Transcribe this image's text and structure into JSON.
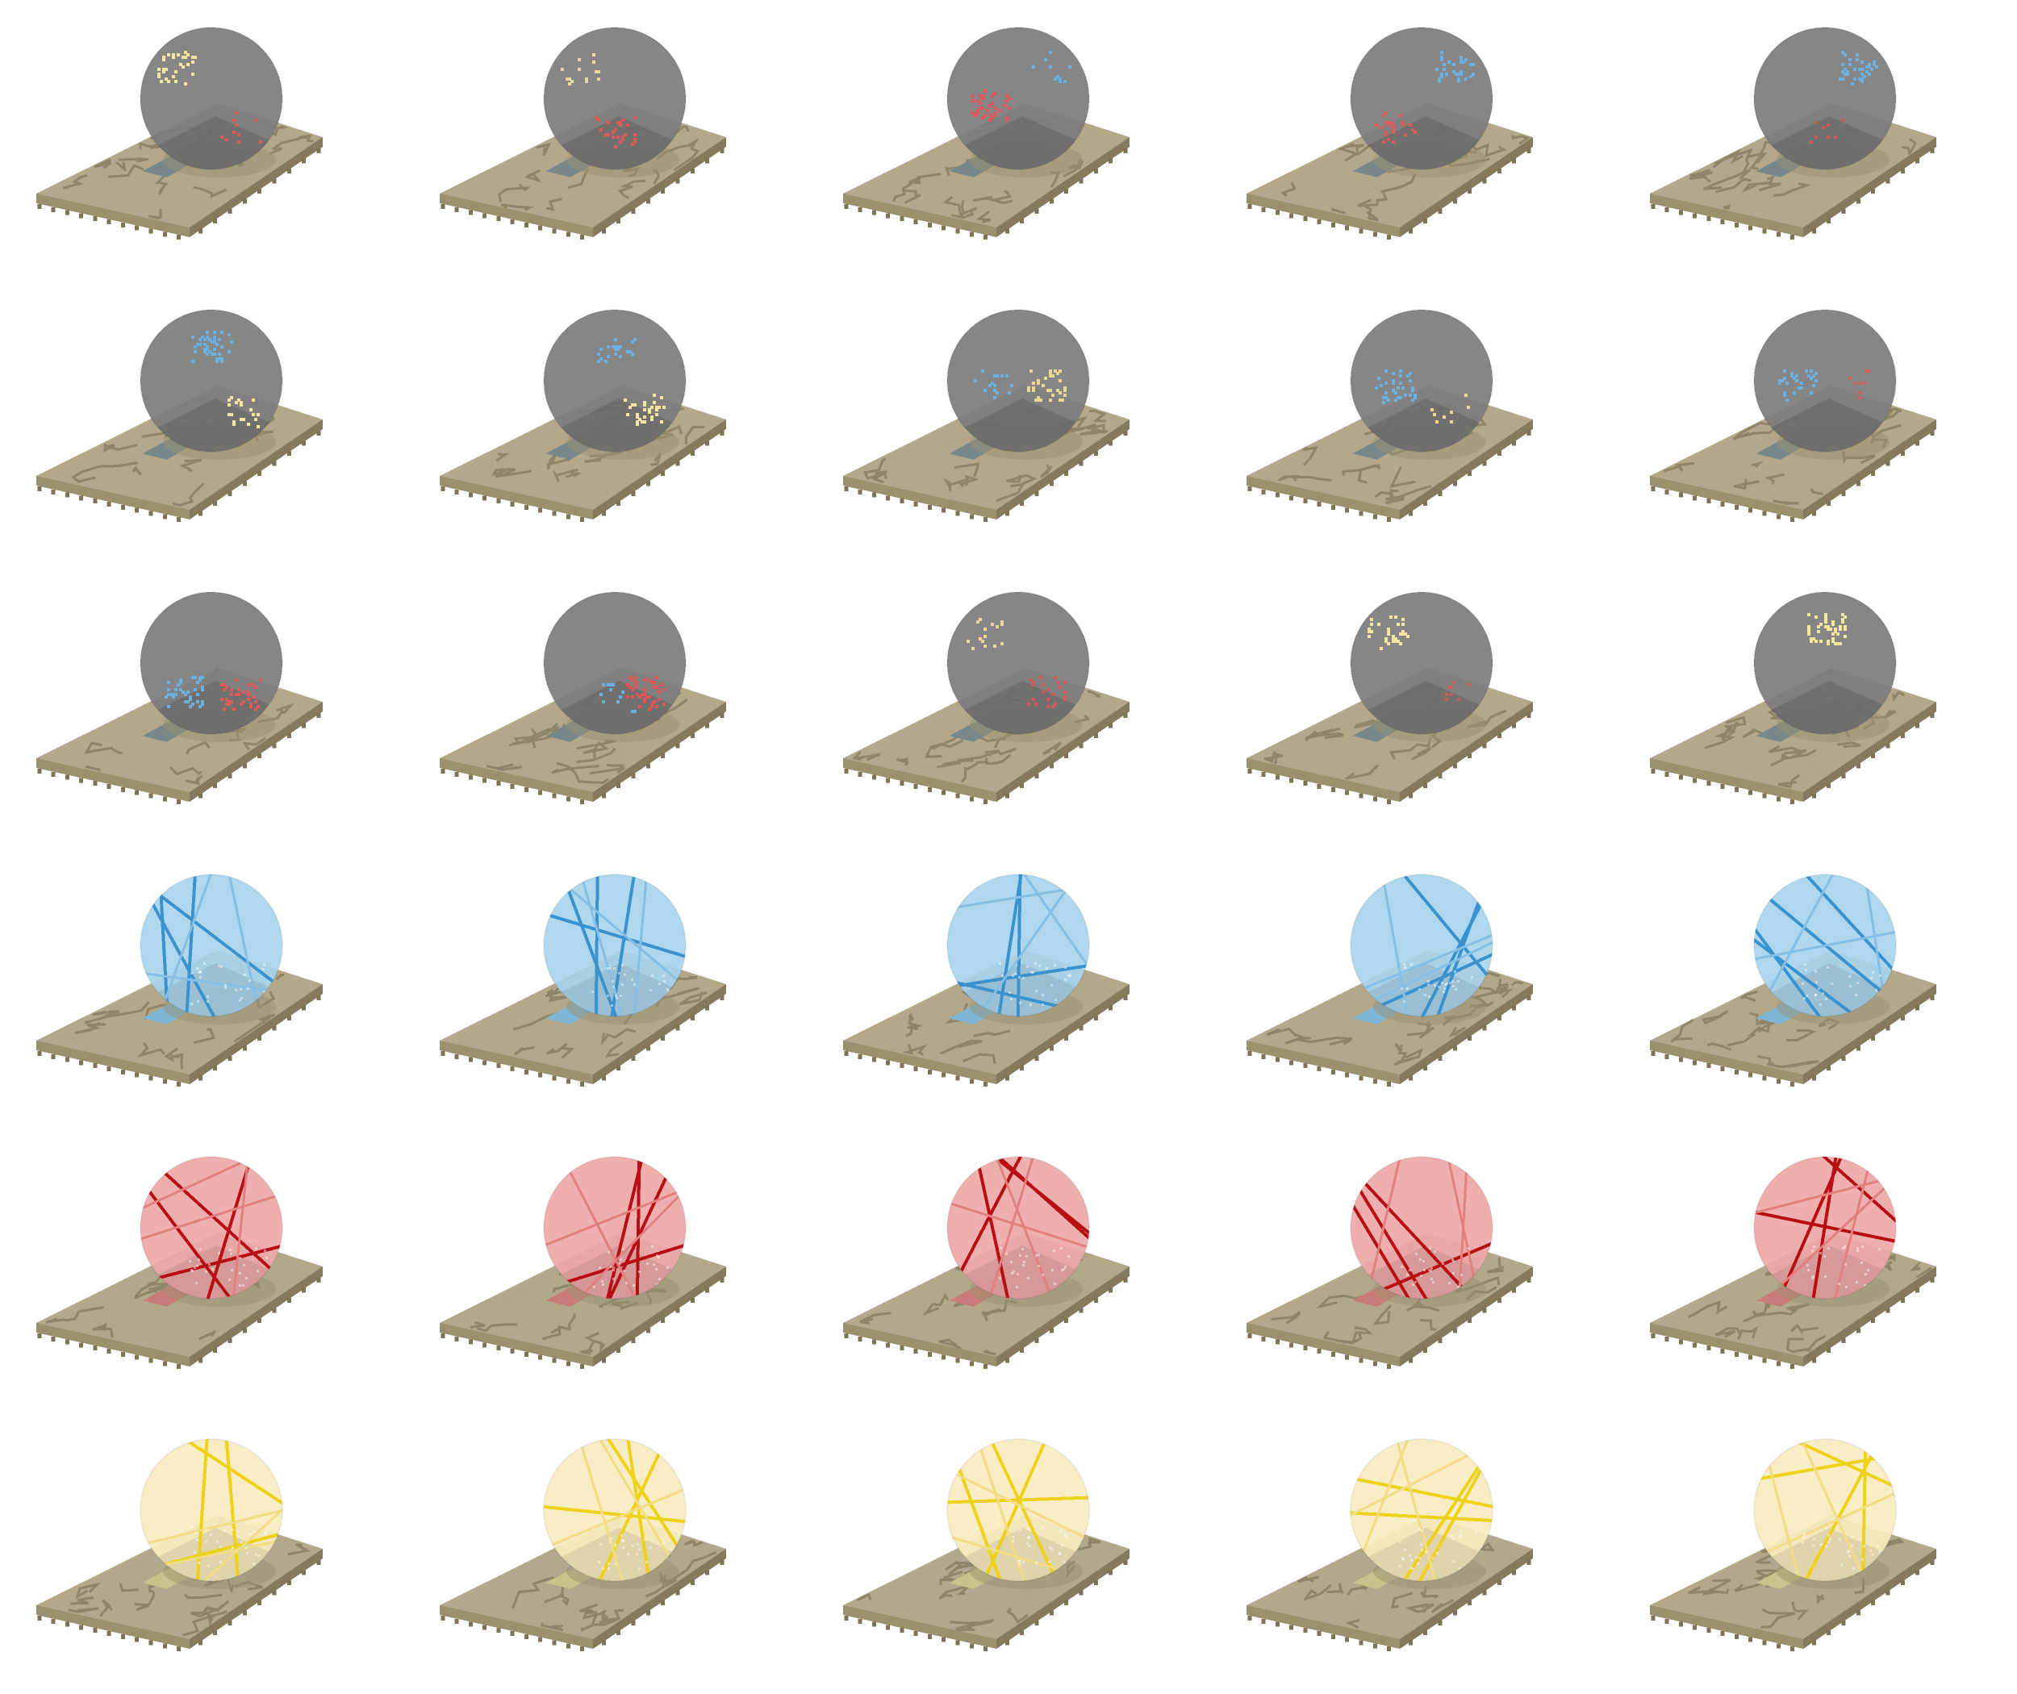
{
  "sprite_sheet": {
    "columns": 5,
    "rows_count": 6,
    "palette": {
      "slab_top": "#b3a88c",
      "slab_crack": "#8f8568",
      "slab_left_side": "#9c916f",
      "slab_right_side": "#857a5c",
      "slab_tooth": "#7d7356",
      "orb_shadow": "#9a916f"
    },
    "rows": [
      {
        "name": "dormant-row-1",
        "state": "dormant",
        "orb_color": "#7d7d7d",
        "orb_opacity": 0.93,
        "pool_color": "#77878a",
        "frames": [
          {
            "sparks": [
              {
                "color": "#f2e6a0",
                "region": "upper-left",
                "count": 34
              },
              {
                "color": "#e05a5a",
                "region": "lower-right",
                "count": 10
              }
            ]
          },
          {
            "sparks": [
              {
                "color": "#e8d8a0",
                "region": "upper-left",
                "count": 14
              },
              {
                "color": "#e05a5a",
                "region": "lower-center",
                "count": 26
              }
            ]
          },
          {
            "sparks": [
              {
                "color": "#6ab0e0",
                "region": "upper-right",
                "count": 10
              },
              {
                "color": "#e8535a",
                "region": "center-left",
                "count": 40
              }
            ]
          },
          {
            "sparks": [
              {
                "color": "#6ab0e0",
                "region": "upper-right",
                "count": 32
              },
              {
                "color": "#e05a5a",
                "region": "lower-left",
                "count": 26
              }
            ]
          },
          {
            "sparks": [
              {
                "color": "#6ab0e0",
                "region": "upper-right",
                "count": 36
              },
              {
                "color": "#c85a5a",
                "region": "lower-center",
                "count": 8
              }
            ]
          }
        ]
      },
      {
        "name": "dormant-row-2",
        "state": "dormant",
        "orb_color": "#7d7d7d",
        "orb_opacity": 0.93,
        "pool_color": "#77878a",
        "frames": [
          {
            "sparks": [
              {
                "color": "#6ab0e0",
                "region": "upper-center",
                "count": 40
              },
              {
                "color": "#f2e6a0",
                "region": "lower-right",
                "count": 20
              }
            ]
          },
          {
            "sparks": [
              {
                "color": "#6ab0e0",
                "region": "upper-center",
                "count": 22
              },
              {
                "color": "#f2e6a0",
                "region": "lower-right",
                "count": 34
              }
            ]
          },
          {
            "sparks": [
              {
                "color": "#6ab0e0",
                "region": "center-left",
                "count": 16
              },
              {
                "color": "#e8d890",
                "region": "center-right",
                "count": 34
              }
            ]
          },
          {
            "sparks": [
              {
                "color": "#6ab0e0",
                "region": "center-left",
                "count": 34
              },
              {
                "color": "#e8d890",
                "region": "lower-right",
                "count": 8
              }
            ]
          },
          {
            "sparks": [
              {
                "color": "#6ab0e0",
                "region": "center-left",
                "count": 30
              },
              {
                "color": "#d06060",
                "region": "center-right",
                "count": 10
              }
            ]
          }
        ]
      },
      {
        "name": "dormant-row-3",
        "state": "dormant",
        "orb_color": "#7d7d7d",
        "orb_opacity": 0.93,
        "pool_color": "#77878a",
        "frames": [
          {
            "sparks": [
              {
                "color": "#6ab0e0",
                "region": "lower-left",
                "count": 40
              },
              {
                "color": "#e05a5a",
                "region": "lower-right",
                "count": 36
              }
            ]
          },
          {
            "sparks": [
              {
                "color": "#6ab0e0",
                "region": "lower-center",
                "count": 12
              },
              {
                "color": "#e8535a",
                "region": "lower-right",
                "count": 40
              }
            ]
          },
          {
            "sparks": [
              {
                "color": "#e8d8a0",
                "region": "upper-left",
                "count": 16
              },
              {
                "color": "#d05a5a",
                "region": "lower-right",
                "count": 22
              }
            ]
          },
          {
            "sparks": [
              {
                "color": "#f2e6a0",
                "region": "upper-left",
                "count": 34
              },
              {
                "color": "#c06060",
                "region": "lower-right",
                "count": 8
              }
            ]
          },
          {
            "sparks": [
              {
                "color": "#f6e89a",
                "region": "upper-center",
                "count": 46
              }
            ]
          }
        ]
      },
      {
        "name": "water-row",
        "state": "charged",
        "orb_color": "#a8d5ee",
        "orb_opacity": 0.92,
        "pool_color": "#7fb6d6",
        "streak_color": "#3a93cf",
        "streak_faint_color": "#86bfe3",
        "frames": [
          {
            "streak_seed": 11
          },
          {
            "streak_seed": 23
          },
          {
            "streak_seed": 37
          },
          {
            "streak_seed": 41
          },
          {
            "streak_seed": 53
          }
        ]
      },
      {
        "name": "fire-row",
        "state": "charged",
        "orb_color": "#eea8a8",
        "orb_opacity": 0.92,
        "pool_color": "#c97b7b",
        "streak_color": "#b80f14",
        "streak_faint_color": "#e27f7f",
        "frames": [
          {
            "streak_seed": 61
          },
          {
            "streak_seed": 73
          },
          {
            "streak_seed": 89
          },
          {
            "streak_seed": 97
          },
          {
            "streak_seed": 103
          }
        ]
      },
      {
        "name": "light-row",
        "state": "charged",
        "orb_color": "#f8ecbf",
        "orb_opacity": 0.93,
        "pool_color": "#c9c28c",
        "streak_color": "#eed21a",
        "streak_faint_color": "#f1dd84",
        "frames": [
          {
            "streak_seed": 113
          },
          {
            "streak_seed": 127
          },
          {
            "streak_seed": 131
          },
          {
            "streak_seed": 139
          },
          {
            "streak_seed": 149
          }
        ]
      }
    ]
  }
}
